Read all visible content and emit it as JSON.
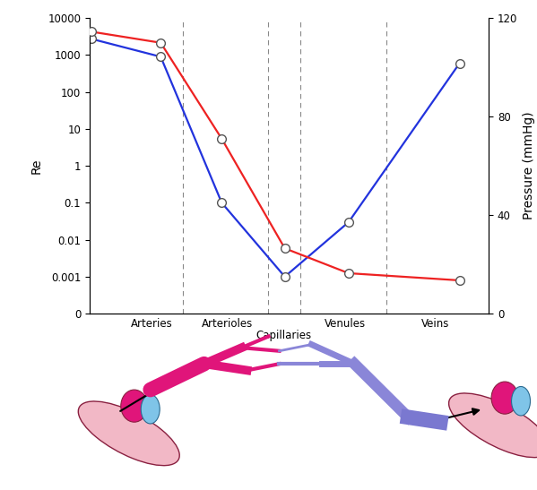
{
  "chart_data": {
    "type": "line",
    "x": [
      0.4,
      17.8,
      33.1,
      48.9,
      64.9,
      92.7
    ],
    "xlim": [
      0,
      100
    ],
    "xticks": [
      {
        "value": 15.6,
        "label": "Arteries"
      },
      {
        "value": 34.4,
        "label": "Arterioles"
      },
      {
        "value": 48.7,
        "label": "Capillaries"
      },
      {
        "value": 64,
        "label": "Venules"
      },
      {
        "value": 86.7,
        "label": "Veins"
      }
    ],
    "dividers": [
      23.3,
      44.7,
      52.7,
      74.4
    ],
    "y_label": "Re",
    "y2_label": "Pressure (mmHg)",
    "log": "y",
    "ylim": [
      0.0001,
      10000
    ],
    "yticks": [
      {
        "value": 0.0001,
        "label": "0"
      },
      0.001,
      0.01,
      0.1,
      1,
      10,
      100,
      1000,
      10000
    ],
    "y2lim": [
      0,
      120
    ],
    "y2ticks": [
      0,
      40,
      80,
      120
    ],
    "series": [
      {
        "color": "#2233dd",
        "marker": "o",
        "values": [
          2750,
          900,
          0.1,
          0.001,
          0.03,
          600
        ]
      },
      {
        "color": "#ee2222",
        "marker": "o",
        "axis": "y2",
        "values": [
          114.5,
          110,
          71,
          26.5,
          16.4,
          13.5
        ]
      }
    ]
  }
}
